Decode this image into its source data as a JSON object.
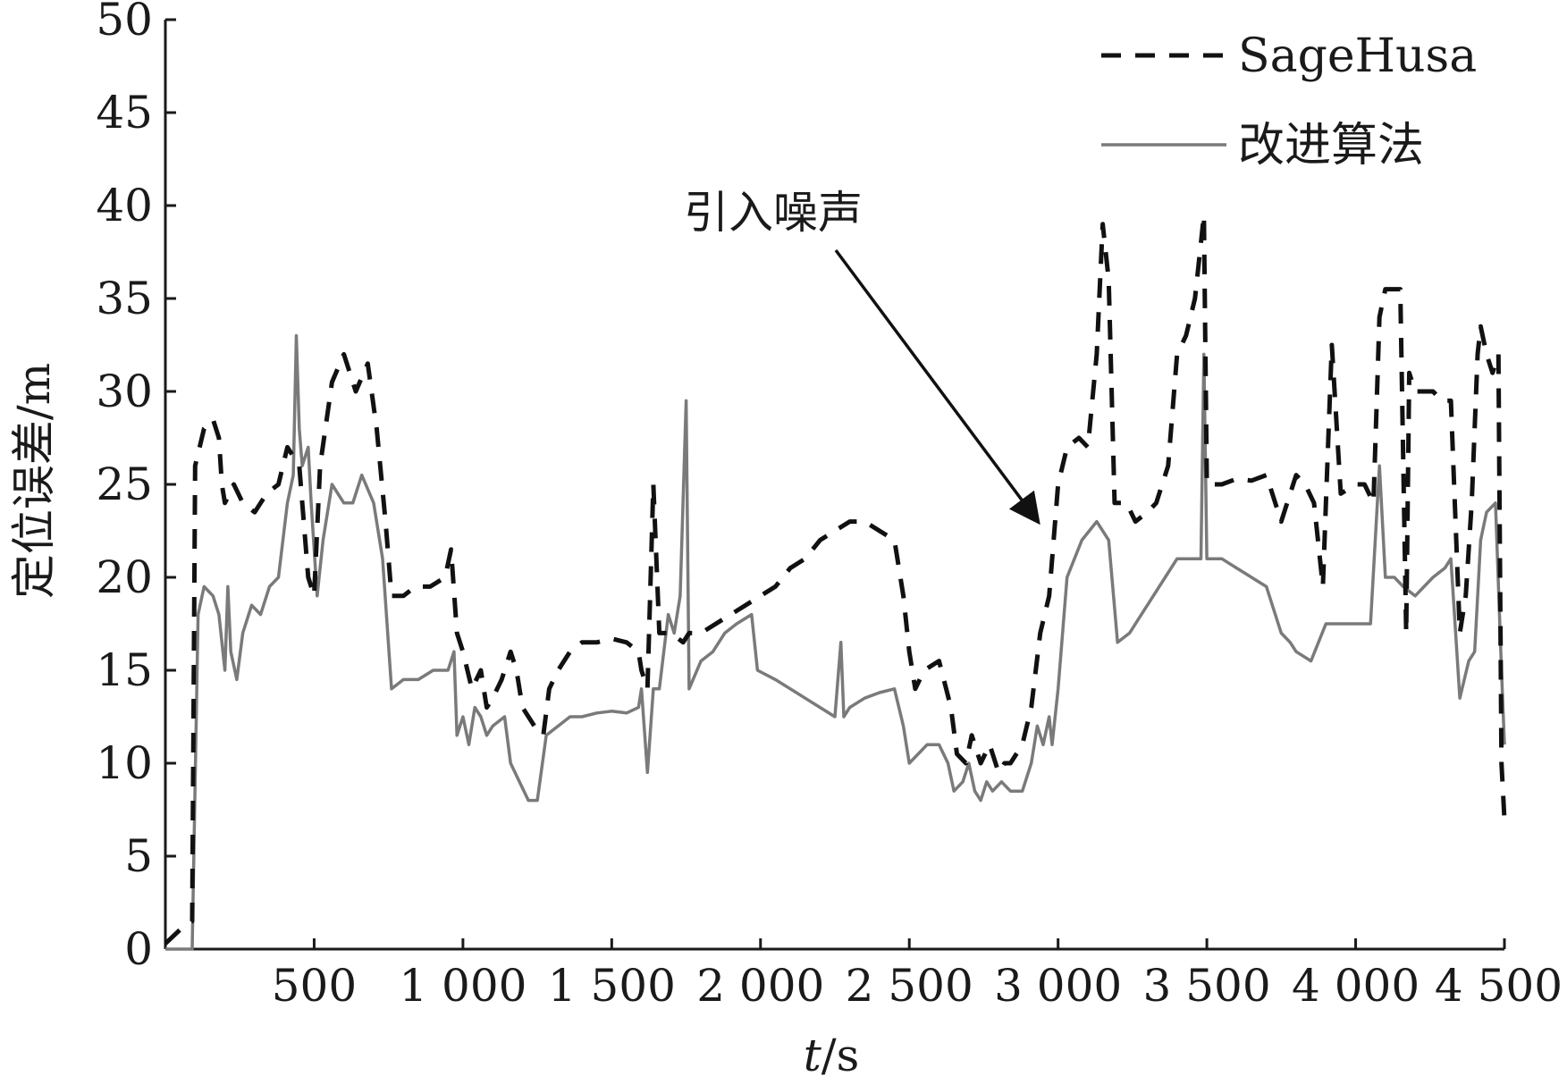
{
  "chart_data": {
    "type": "line",
    "title": "",
    "xlabel_italic": "t",
    "xlabel_rest": "/s",
    "ylabel": "定位误差/m",
    "xlim": [
      0,
      4500
    ],
    "ylim": [
      0,
      50
    ],
    "x_ticks": [
      500,
      1000,
      1500,
      2000,
      2500,
      3000,
      3500,
      4000,
      4500
    ],
    "x_tick_labels": [
      "500",
      "1 000",
      "1 500",
      "2 000",
      "2 500",
      "3 000",
      "3 500",
      "4 000",
      "4 500"
    ],
    "y_ticks": [
      0,
      5,
      10,
      15,
      20,
      25,
      30,
      35,
      40,
      45,
      50
    ],
    "y_tick_labels": [
      "0",
      "5",
      "10",
      "15",
      "20",
      "25",
      "30",
      "35",
      "40",
      "45",
      "50"
    ],
    "legend_position": "top-right",
    "annotation": {
      "text": "引入噪声",
      "target": [
        2970,
        22
      ]
    },
    "series": [
      {
        "name": "SageHusa",
        "style": "dashed",
        "color": "#111111",
        "points": [
          [
            0,
            0.3
          ],
          [
            60,
            1.2
          ],
          [
            90,
            1.5
          ],
          [
            100,
            26
          ],
          [
            130,
            28
          ],
          [
            160,
            28.5
          ],
          [
            180,
            27.5
          ],
          [
            190,
            25
          ],
          [
            200,
            24
          ],
          [
            230,
            25
          ],
          [
            260,
            24
          ],
          [
            300,
            23.5
          ],
          [
            340,
            24.5
          ],
          [
            380,
            25
          ],
          [
            410,
            27
          ],
          [
            450,
            26
          ],
          [
            480,
            20
          ],
          [
            500,
            19
          ],
          [
            520,
            26
          ],
          [
            560,
            30.5
          ],
          [
            600,
            32
          ],
          [
            640,
            30
          ],
          [
            680,
            31.5
          ],
          [
            710,
            28
          ],
          [
            740,
            23
          ],
          [
            760,
            19
          ],
          [
            800,
            19
          ],
          [
            840,
            19.5
          ],
          [
            890,
            19.5
          ],
          [
            940,
            20
          ],
          [
            960,
            21.5
          ],
          [
            980,
            17
          ],
          [
            1000,
            16
          ],
          [
            1030,
            14
          ],
          [
            1060,
            15
          ],
          [
            1080,
            13
          ],
          [
            1100,
            13.5
          ],
          [
            1130,
            14.5
          ],
          [
            1160,
            16
          ],
          [
            1180,
            15
          ],
          [
            1200,
            13
          ],
          [
            1240,
            12
          ],
          [
            1270,
            11.5
          ],
          [
            1290,
            14
          ],
          [
            1320,
            15
          ],
          [
            1360,
            16
          ],
          [
            1400,
            16.5
          ],
          [
            1450,
            16.5
          ],
          [
            1500,
            16.7
          ],
          [
            1550,
            16.5
          ],
          [
            1590,
            16
          ],
          [
            1600,
            15
          ],
          [
            1620,
            14
          ],
          [
            1640,
            25
          ],
          [
            1660,
            17
          ],
          [
            1700,
            17
          ],
          [
            1740,
            16.5
          ],
          [
            1760,
            17
          ],
          [
            1800,
            17
          ],
          [
            1850,
            17.5
          ],
          [
            1900,
            18
          ],
          [
            1950,
            18.5
          ],
          [
            2000,
            19
          ],
          [
            2050,
            19.5
          ],
          [
            2100,
            20.5
          ],
          [
            2150,
            21
          ],
          [
            2200,
            22
          ],
          [
            2250,
            22.5
          ],
          [
            2300,
            23
          ],
          [
            2350,
            23
          ],
          [
            2400,
            22.5
          ],
          [
            2450,
            22
          ],
          [
            2480,
            19
          ],
          [
            2500,
            16
          ],
          [
            2520,
            14
          ],
          [
            2550,
            15
          ],
          [
            2600,
            15.5
          ],
          [
            2640,
            13
          ],
          [
            2660,
            10.5
          ],
          [
            2690,
            10
          ],
          [
            2710,
            11.5
          ],
          [
            2740,
            10
          ],
          [
            2770,
            11
          ],
          [
            2800,
            9.5
          ],
          [
            2820,
            10
          ],
          [
            2840,
            10
          ],
          [
            2880,
            11
          ],
          [
            2910,
            13
          ],
          [
            2940,
            17
          ],
          [
            2970,
            19
          ],
          [
            3000,
            25
          ],
          [
            3030,
            27
          ],
          [
            3070,
            27.5
          ],
          [
            3100,
            27
          ],
          [
            3130,
            32
          ],
          [
            3150,
            39
          ],
          [
            3170,
            36
          ],
          [
            3190,
            24
          ],
          [
            3230,
            24
          ],
          [
            3260,
            23
          ],
          [
            3300,
            23.5
          ],
          [
            3330,
            24
          ],
          [
            3370,
            26
          ],
          [
            3400,
            32
          ],
          [
            3430,
            33
          ],
          [
            3460,
            35
          ],
          [
            3480,
            38
          ],
          [
            3490,
            39.5
          ],
          [
            3500,
            25
          ],
          [
            3550,
            25
          ],
          [
            3600,
            25.3
          ],
          [
            3650,
            25.2
          ],
          [
            3700,
            25.5
          ],
          [
            3750,
            23
          ],
          [
            3780,
            24.5
          ],
          [
            3800,
            25.5
          ],
          [
            3830,
            25
          ],
          [
            3860,
            24
          ],
          [
            3890,
            19.5
          ],
          [
            3900,
            24
          ],
          [
            3920,
            32.5
          ],
          [
            3950,
            24.5
          ],
          [
            4000,
            25
          ],
          [
            4030,
            25
          ],
          [
            4060,
            24
          ],
          [
            4080,
            34
          ],
          [
            4100,
            35.5
          ],
          [
            4120,
            35.5
          ],
          [
            4150,
            35.5
          ],
          [
            4170,
            17
          ],
          [
            4180,
            31
          ],
          [
            4200,
            30
          ],
          [
            4230,
            30
          ],
          [
            4260,
            30
          ],
          [
            4290,
            29.5
          ],
          [
            4320,
            29.5
          ],
          [
            4350,
            17
          ],
          [
            4370,
            19
          ],
          [
            4390,
            24
          ],
          [
            4410,
            32
          ],
          [
            4420,
            33.5
          ],
          [
            4440,
            32
          ],
          [
            4460,
            31
          ],
          [
            4480,
            32
          ],
          [
            4490,
            10
          ],
          [
            4500,
            7
          ]
        ]
      },
      {
        "name": "改进算法",
        "style": "solid",
        "color": "#7a7a7a",
        "points": [
          [
            0,
            0
          ],
          [
            90,
            0
          ],
          [
            110,
            18
          ],
          [
            130,
            19.5
          ],
          [
            160,
            19
          ],
          [
            180,
            18
          ],
          [
            200,
            15
          ],
          [
            210,
            19.5
          ],
          [
            220,
            16
          ],
          [
            240,
            14.5
          ],
          [
            260,
            17
          ],
          [
            290,
            18.5
          ],
          [
            320,
            18
          ],
          [
            350,
            19.5
          ],
          [
            380,
            20
          ],
          [
            410,
            24
          ],
          [
            430,
            25.5
          ],
          [
            440,
            33
          ],
          [
            450,
            28
          ],
          [
            460,
            26
          ],
          [
            480,
            27
          ],
          [
            490,
            24
          ],
          [
            510,
            19
          ],
          [
            530,
            22
          ],
          [
            560,
            25
          ],
          [
            600,
            24
          ],
          [
            630,
            24
          ],
          [
            660,
            25.5
          ],
          [
            700,
            24
          ],
          [
            730,
            21
          ],
          [
            760,
            14
          ],
          [
            800,
            14.5
          ],
          [
            850,
            14.5
          ],
          [
            900,
            15
          ],
          [
            950,
            15
          ],
          [
            970,
            16
          ],
          [
            980,
            11.5
          ],
          [
            1000,
            12.5
          ],
          [
            1020,
            11
          ],
          [
            1040,
            13
          ],
          [
            1060,
            12.5
          ],
          [
            1080,
            11.5
          ],
          [
            1100,
            12
          ],
          [
            1140,
            12.5
          ],
          [
            1160,
            10
          ],
          [
            1190,
            9
          ],
          [
            1220,
            8
          ],
          [
            1250,
            8
          ],
          [
            1280,
            11.5
          ],
          [
            1320,
            12
          ],
          [
            1360,
            12.5
          ],
          [
            1400,
            12.5
          ],
          [
            1450,
            12.7
          ],
          [
            1500,
            12.8
          ],
          [
            1550,
            12.7
          ],
          [
            1590,
            13
          ],
          [
            1600,
            14
          ],
          [
            1620,
            9.5
          ],
          [
            1640,
            14
          ],
          [
            1660,
            14
          ],
          [
            1690,
            18
          ],
          [
            1710,
            17
          ],
          [
            1730,
            19
          ],
          [
            1750,
            29.5
          ],
          [
            1760,
            14
          ],
          [
            1800,
            15.5
          ],
          [
            1840,
            16
          ],
          [
            1880,
            17
          ],
          [
            1920,
            17.5
          ],
          [
            1970,
            18
          ],
          [
            1990,
            15
          ],
          [
            2050,
            14.5
          ],
          [
            2100,
            14
          ],
          [
            2150,
            13.5
          ],
          [
            2200,
            13
          ],
          [
            2250,
            12.5
          ],
          [
            2270,
            16.5
          ],
          [
            2280,
            12.5
          ],
          [
            2300,
            13
          ],
          [
            2350,
            13.5
          ],
          [
            2400,
            13.8
          ],
          [
            2450,
            14
          ],
          [
            2480,
            12
          ],
          [
            2500,
            10
          ],
          [
            2530,
            10.5
          ],
          [
            2560,
            11
          ],
          [
            2600,
            11
          ],
          [
            2630,
            10
          ],
          [
            2650,
            8.5
          ],
          [
            2680,
            9
          ],
          [
            2700,
            10
          ],
          [
            2720,
            8.5
          ],
          [
            2740,
            8
          ],
          [
            2760,
            9
          ],
          [
            2780,
            8.5
          ],
          [
            2810,
            9
          ],
          [
            2840,
            8.5
          ],
          [
            2880,
            8.5
          ],
          [
            2910,
            10
          ],
          [
            2930,
            12
          ],
          [
            2950,
            11
          ],
          [
            2970,
            12.5
          ],
          [
            2980,
            11
          ],
          [
            3000,
            14
          ],
          [
            3030,
            20
          ],
          [
            3080,
            22
          ],
          [
            3130,
            23
          ],
          [
            3170,
            22
          ],
          [
            3200,
            16.5
          ],
          [
            3240,
            17
          ],
          [
            3280,
            18
          ],
          [
            3320,
            19
          ],
          [
            3360,
            20
          ],
          [
            3400,
            21
          ],
          [
            3450,
            21
          ],
          [
            3480,
            21
          ],
          [
            3490,
            32
          ],
          [
            3500,
            21
          ],
          [
            3550,
            21
          ],
          [
            3600,
            20.5
          ],
          [
            3650,
            20
          ],
          [
            3700,
            19.5
          ],
          [
            3750,
            17
          ],
          [
            3780,
            16.5
          ],
          [
            3800,
            16
          ],
          [
            3850,
            15.5
          ],
          [
            3900,
            17.5
          ],
          [
            3950,
            17.5
          ],
          [
            4000,
            17.5
          ],
          [
            4050,
            17.5
          ],
          [
            4080,
            26
          ],
          [
            4100,
            20
          ],
          [
            4130,
            20
          ],
          [
            4160,
            19.5
          ],
          [
            4200,
            19
          ],
          [
            4260,
            20
          ],
          [
            4300,
            20.5
          ],
          [
            4320,
            21
          ],
          [
            4350,
            13.5
          ],
          [
            4380,
            15.5
          ],
          [
            4400,
            16
          ],
          [
            4420,
            22
          ],
          [
            4440,
            23.5
          ],
          [
            4470,
            24
          ],
          [
            4490,
            15
          ],
          [
            4500,
            11
          ]
        ]
      }
    ]
  }
}
